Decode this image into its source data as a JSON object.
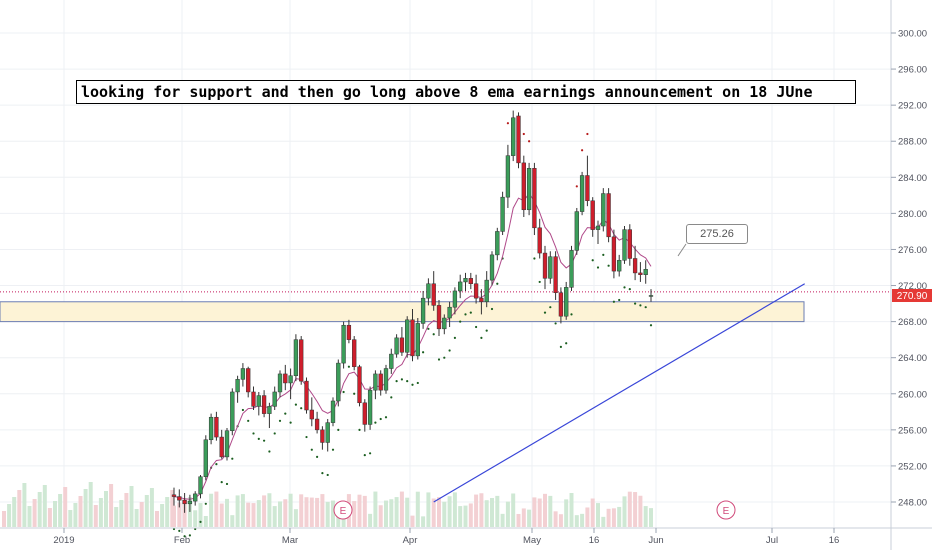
{
  "chart_data": {
    "type": "candlestick",
    "annotation": "looking for support and then go long above 8 ema  earnings announcement on 18 JUne",
    "callout_value": "275.26",
    "last_price": "270.90",
    "y_ticks": [
      "300.00",
      "296.00",
      "292.00",
      "288.00",
      "284.00",
      "280.00",
      "276.00",
      "272.00",
      "268.00",
      "264.00",
      "260.00",
      "256.00",
      "252.00",
      "248.00"
    ],
    "x_ticks": [
      "2019",
      "Feb",
      "Mar",
      "Apr",
      "May",
      "16",
      "Jun",
      "Jul",
      "16"
    ],
    "earnings_marker": "E",
    "ylim": [
      245,
      304
    ],
    "support_zone": [
      268.0,
      270.2
    ],
    "trendline": [
      [
        50,
        248.0
      ],
      [
        120,
        272.2
      ]
    ],
    "ohlc": [
      [
        1,
        248.8,
        249.6,
        247.6,
        248.6
      ],
      [
        2,
        248.6,
        249.4,
        247.4,
        248.2
      ],
      [
        3,
        248.2,
        249.0,
        246.8,
        247.8
      ],
      [
        4,
        247.8,
        248.8,
        246.9,
        248.1
      ],
      [
        5,
        248.1,
        249.2,
        247.6,
        248.9
      ],
      [
        6,
        248.9,
        251.0,
        248.4,
        250.8
      ],
      [
        7,
        250.8,
        255.4,
        250.4,
        254.9
      ],
      [
        8,
        254.9,
        257.8,
        254.4,
        257.4
      ],
      [
        9,
        257.4,
        258.0,
        254.8,
        255.2
      ],
      [
        10,
        255.2,
        256.0,
        252.8,
        253.0
      ],
      [
        11,
        253.0,
        256.2,
        252.6,
        255.9
      ],
      [
        12,
        255.9,
        260.6,
        255.4,
        260.2
      ],
      [
        13,
        260.2,
        262.0,
        259.0,
        261.6
      ],
      [
        14,
        261.6,
        263.4,
        260.8,
        262.8
      ],
      [
        15,
        262.8,
        263.0,
        259.6,
        260.2
      ],
      [
        16,
        260.2,
        260.8,
        258.2,
        258.6
      ],
      [
        17,
        258.6,
        260.2,
        257.6,
        259.8
      ],
      [
        18,
        259.8,
        260.4,
        257.4,
        257.8
      ],
      [
        19,
        257.8,
        259.0,
        256.2,
        258.6
      ],
      [
        20,
        258.6,
        260.8,
        258.2,
        260.2
      ],
      [
        21,
        260.2,
        262.6,
        259.6,
        262.2
      ],
      [
        22,
        262.2,
        263.2,
        260.4,
        261.2
      ],
      [
        23,
        261.2,
        262.8,
        259.4,
        262.0
      ],
      [
        24,
        262.0,
        266.6,
        261.4,
        266.0
      ],
      [
        25,
        266.0,
        266.4,
        261.0,
        261.4
      ],
      [
        26,
        261.4,
        261.8,
        257.8,
        258.2
      ],
      [
        27,
        258.2,
        259.6,
        256.4,
        257.2
      ],
      [
        28,
        257.2,
        258.0,
        255.6,
        256.0
      ],
      [
        29,
        256.0,
        256.4,
        253.8,
        254.6
      ],
      [
        30,
        254.6,
        257.2,
        253.6,
        256.8
      ],
      [
        31,
        256.8,
        259.6,
        256.4,
        259.2
      ],
      [
        32,
        259.2,
        263.8,
        258.6,
        263.4
      ],
      [
        33,
        263.4,
        268.0,
        262.8,
        267.6
      ],
      [
        34,
        267.6,
        268.2,
        265.6,
        266.0
      ],
      [
        35,
        266.0,
        266.4,
        262.6,
        263.0
      ],
      [
        36,
        263.0,
        263.2,
        258.6,
        259.0
      ],
      [
        37,
        259.0,
        259.4,
        255.8,
        256.6
      ],
      [
        38,
        256.6,
        260.8,
        256.0,
        260.4
      ],
      [
        39,
        260.4,
        262.6,
        259.4,
        262.2
      ],
      [
        40,
        262.2,
        262.6,
        259.8,
        260.4
      ],
      [
        41,
        260.4,
        263.2,
        260.0,
        262.8
      ],
      [
        42,
        262.8,
        265.0,
        262.2,
        264.4
      ],
      [
        43,
        264.4,
        266.6,
        264.0,
        266.2
      ],
      [
        44,
        266.2,
        267.4,
        264.2,
        264.6
      ],
      [
        45,
        264.6,
        268.6,
        264.0,
        268.2
      ],
      [
        46,
        268.2,
        269.4,
        263.6,
        264.2
      ],
      [
        47,
        264.2,
        268.4,
        263.8,
        267.8
      ],
      [
        48,
        267.8,
        271.4,
        267.2,
        270.6
      ],
      [
        49,
        270.6,
        272.8,
        269.8,
        272.2
      ],
      [
        50,
        272.2,
        273.6,
        269.2,
        269.8
      ],
      [
        51,
        269.8,
        270.4,
        266.4,
        267.2
      ],
      [
        52,
        267.2,
        268.8,
        266.6,
        268.4
      ],
      [
        53,
        268.4,
        270.2,
        267.4,
        269.6
      ],
      [
        54,
        269.6,
        271.8,
        268.8,
        271.4
      ],
      [
        55,
        271.4,
        273.2,
        270.6,
        272.4
      ],
      [
        56,
        272.4,
        273.4,
        271.4,
        272.8
      ],
      [
        57,
        272.8,
        273.4,
        271.6,
        272.2
      ],
      [
        58,
        272.2,
        273.2,
        270.0,
        270.6
      ],
      [
        59,
        270.6,
        271.6,
        268.8,
        270.2
      ],
      [
        60,
        270.2,
        273.6,
        269.6,
        272.6
      ],
      [
        61,
        272.6,
        275.8,
        272.0,
        275.4
      ],
      [
        62,
        275.4,
        278.4,
        274.8,
        278.0
      ],
      [
        63,
        278.0,
        282.4,
        277.6,
        281.8
      ],
      [
        64,
        281.8,
        287.6,
        280.6,
        286.4
      ],
      [
        65,
        286.4,
        291.4,
        285.8,
        290.6
      ],
      [
        66,
        290.8,
        291.2,
        285.0,
        285.6
      ],
      [
        67,
        285.6,
        286.4,
        279.6,
        280.4
      ],
      [
        68,
        280.4,
        285.6,
        279.8,
        285.0
      ],
      [
        69,
        285.0,
        285.6,
        277.6,
        278.4
      ],
      [
        70,
        278.4,
        279.4,
        275.0,
        275.6
      ],
      [
        71,
        275.6,
        276.4,
        271.6,
        272.8
      ],
      [
        72,
        272.8,
        275.8,
        272.2,
        275.2
      ],
      [
        73,
        275.2,
        275.8,
        270.4,
        271.2
      ],
      [
        74,
        271.2,
        271.8,
        267.8,
        268.6
      ],
      [
        75,
        268.6,
        272.4,
        268.2,
        271.8
      ],
      [
        76,
        271.8,
        276.4,
        271.4,
        275.9
      ],
      [
        77,
        275.9,
        280.6,
        275.4,
        280.2
      ],
      [
        78,
        280.2,
        284.6,
        279.8,
        284.2
      ],
      [
        79,
        284.2,
        286.4,
        280.8,
        281.4
      ],
      [
        80,
        281.4,
        281.8,
        277.4,
        278.2
      ],
      [
        81,
        278.2,
        279.2,
        276.6,
        278.6
      ],
      [
        82,
        278.6,
        282.8,
        278.0,
        282.2
      ],
      [
        83,
        282.2,
        282.8,
        276.8,
        277.4
      ],
      [
        84,
        277.4,
        278.2,
        272.8,
        273.6
      ],
      [
        85,
        273.6,
        275.4,
        273.0,
        274.8
      ],
      [
        86,
        274.8,
        278.6,
        274.4,
        278.2
      ],
      [
        87,
        278.2,
        278.8,
        274.2,
        275.0
      ],
      [
        88,
        275.0,
        276.4,
        272.6,
        273.4
      ],
      [
        89,
        273.4,
        274.6,
        272.4,
        273.2
      ],
      [
        90,
        273.2,
        274.8,
        272.2,
        273.8
      ],
      [
        91,
        270.9,
        271.6,
        270.2,
        270.9
      ]
    ]
  }
}
